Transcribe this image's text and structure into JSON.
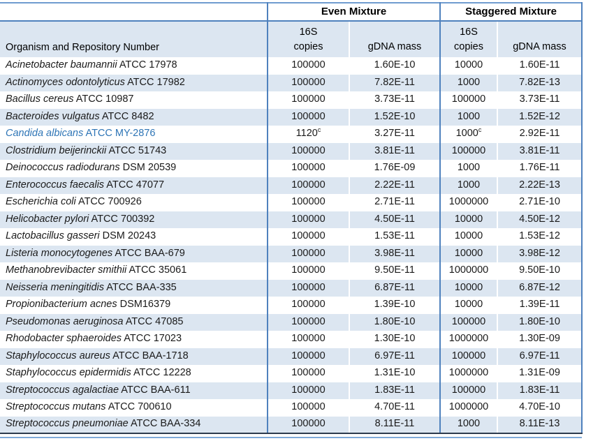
{
  "colors": {
    "band": "#dce6f1",
    "border_blue": "#4f81bd",
    "border_blue_light": "#6f9ccf",
    "bottom_dark": "#2c3b4e",
    "bottom_rule": "#7ea9d8",
    "highlight_text": "#2e75b6"
  },
  "table": {
    "column_group_headers": [
      "Even Mixture",
      "Staggered Mixture"
    ],
    "organism_header": "Organism and Repository Number",
    "copies_header_line1": "16S",
    "copies_header_line2": "copies",
    "gdna_header": "gDNA mass",
    "rows": [
      {
        "species": "Acinetobacter baumannii",
        "accession": "ATCC 17978",
        "even_copies": "100000",
        "even_copies_sup": "",
        "even_gdna": "1.60E-10",
        "stag_copies": "10000",
        "stag_copies_sup": "",
        "stag_gdna": "1.60E-11",
        "highlight": false
      },
      {
        "species": "Actinomyces odontolyticus",
        "accession": "ATCC 17982",
        "even_copies": "100000",
        "even_copies_sup": "",
        "even_gdna": "7.82E-11",
        "stag_copies": "1000",
        "stag_copies_sup": "",
        "stag_gdna": "7.82E-13",
        "highlight": false
      },
      {
        "species": "Bacillus cereus",
        "accession": "ATCC 10987",
        "even_copies": "100000",
        "even_copies_sup": "",
        "even_gdna": "3.73E-11",
        "stag_copies": "100000",
        "stag_copies_sup": "",
        "stag_gdna": "3.73E-11",
        "highlight": false
      },
      {
        "species": "Bacteroides vulgatus",
        "accession": "ATCC 8482",
        "even_copies": "100000",
        "even_copies_sup": "",
        "even_gdna": "1.52E-10",
        "stag_copies": "1000",
        "stag_copies_sup": "",
        "stag_gdna": "1.52E-12",
        "highlight": false
      },
      {
        "species": "Candida albicans",
        "accession": "ATCC MY-2876",
        "even_copies": "1120",
        "even_copies_sup": "c",
        "even_gdna": "3.27E-11",
        "stag_copies": "1000",
        "stag_copies_sup": "c",
        "stag_gdna": "2.92E-11",
        "highlight": true
      },
      {
        "species": "Clostridium beijerinckii",
        "accession": "ATCC 51743",
        "even_copies": "100000",
        "even_copies_sup": "",
        "even_gdna": "3.81E-11",
        "stag_copies": "100000",
        "stag_copies_sup": "",
        "stag_gdna": "3.81E-11",
        "highlight": false
      },
      {
        "species": "Deinococcus radiodurans",
        "accession": "DSM 20539",
        "even_copies": "100000",
        "even_copies_sup": "",
        "even_gdna": "1.76E-09",
        "stag_copies": "1000",
        "stag_copies_sup": "",
        "stag_gdna": "1.76E-11",
        "highlight": false
      },
      {
        "species": "Enterococcus faecalis",
        "accession": "ATCC 47077",
        "even_copies": "100000",
        "even_copies_sup": "",
        "even_gdna": "2.22E-11",
        "stag_copies": "1000",
        "stag_copies_sup": "",
        "stag_gdna": "2.22E-13",
        "highlight": false
      },
      {
        "species": "Escherichia coli",
        "accession": "ATCC 700926",
        "even_copies": "100000",
        "even_copies_sup": "",
        "even_gdna": "2.71E-11",
        "stag_copies": "1000000",
        "stag_copies_sup": "",
        "stag_gdna": "2.71E-10",
        "highlight": false
      },
      {
        "species": "Helicobacter pylori",
        "accession": "ATCC 700392",
        "even_copies": "100000",
        "even_copies_sup": "",
        "even_gdna": "4.50E-11",
        "stag_copies": "10000",
        "stag_copies_sup": "",
        "stag_gdna": "4.50E-12",
        "highlight": false
      },
      {
        "species": "Lactobacillus gasseri",
        "accession": "DSM 20243",
        "even_copies": "100000",
        "even_copies_sup": "",
        "even_gdna": "1.53E-11",
        "stag_copies": "10000",
        "stag_copies_sup": "",
        "stag_gdna": "1.53E-12",
        "highlight": false
      },
      {
        "species": "Listeria monocytogenes",
        "accession": "ATCC BAA-679",
        "even_copies": "100000",
        "even_copies_sup": "",
        "even_gdna": "3.98E-11",
        "stag_copies": "10000",
        "stag_copies_sup": "",
        "stag_gdna": "3.98E-12",
        "highlight": false
      },
      {
        "species": "Methanobrevibacter smithii",
        "accession": "ATCC 35061",
        "even_copies": "100000",
        "even_copies_sup": "",
        "even_gdna": "9.50E-11",
        "stag_copies": "1000000",
        "stag_copies_sup": "",
        "stag_gdna": "9.50E-10",
        "highlight": false
      },
      {
        "species": "Neisseria meningitidis",
        "accession": "ATCC BAA-335",
        "even_copies": "100000",
        "even_copies_sup": "",
        "even_gdna": "6.87E-11",
        "stag_copies": "10000",
        "stag_copies_sup": "",
        "stag_gdna": "6.87E-12",
        "highlight": false
      },
      {
        "species": "Propionibacterium acnes",
        "accession": "DSM16379",
        "even_copies": "100000",
        "even_copies_sup": "",
        "even_gdna": "1.39E-10",
        "stag_copies": "10000",
        "stag_copies_sup": "",
        "stag_gdna": "1.39E-11",
        "highlight": false
      },
      {
        "species": "Pseudomonas aeruginosa",
        "accession": "ATCC 47085",
        "even_copies": "100000",
        "even_copies_sup": "",
        "even_gdna": "1.80E-10",
        "stag_copies": "100000",
        "stag_copies_sup": "",
        "stag_gdna": "1.80E-10",
        "highlight": false
      },
      {
        "species": "Rhodobacter sphaeroides",
        "accession": "ATCC 17023",
        "even_copies": "100000",
        "even_copies_sup": "",
        "even_gdna": "1.30E-10",
        "stag_copies": "1000000",
        "stag_copies_sup": "",
        "stag_gdna": "1.30E-09",
        "highlight": false
      },
      {
        "species": "Staphylococcus aureus",
        "accession": "ATCC BAA-1718",
        "even_copies": "100000",
        "even_copies_sup": "",
        "even_gdna": "6.97E-11",
        "stag_copies": "100000",
        "stag_copies_sup": "",
        "stag_gdna": "6.97E-11",
        "highlight": false
      },
      {
        "species": "Staphylococcus epidermidis",
        "accession": "ATCC 12228",
        "even_copies": "100000",
        "even_copies_sup": "",
        "even_gdna": "1.31E-10",
        "stag_copies": "1000000",
        "stag_copies_sup": "",
        "stag_gdna": "1.31E-09",
        "highlight": false
      },
      {
        "species": "Streptococcus agalactiae",
        "accession": "ATCC BAA-611",
        "even_copies": "100000",
        "even_copies_sup": "",
        "even_gdna": "1.83E-11",
        "stag_copies": "100000",
        "stag_copies_sup": "",
        "stag_gdna": "1.83E-11",
        "highlight": false
      },
      {
        "species": "Streptococcus mutans",
        "accession": "ATCC 700610",
        "even_copies": "100000",
        "even_copies_sup": "",
        "even_gdna": "4.70E-11",
        "stag_copies": "1000000",
        "stag_copies_sup": "",
        "stag_gdna": "4.70E-10",
        "highlight": false
      },
      {
        "species": "Streptococcus pneumoniae",
        "accession": "ATCC BAA-334",
        "even_copies": "100000",
        "even_copies_sup": "",
        "even_gdna": "8.11E-11",
        "stag_copies": "1000",
        "stag_copies_sup": "",
        "stag_gdna": "8.11E-13",
        "highlight": false
      }
    ]
  }
}
